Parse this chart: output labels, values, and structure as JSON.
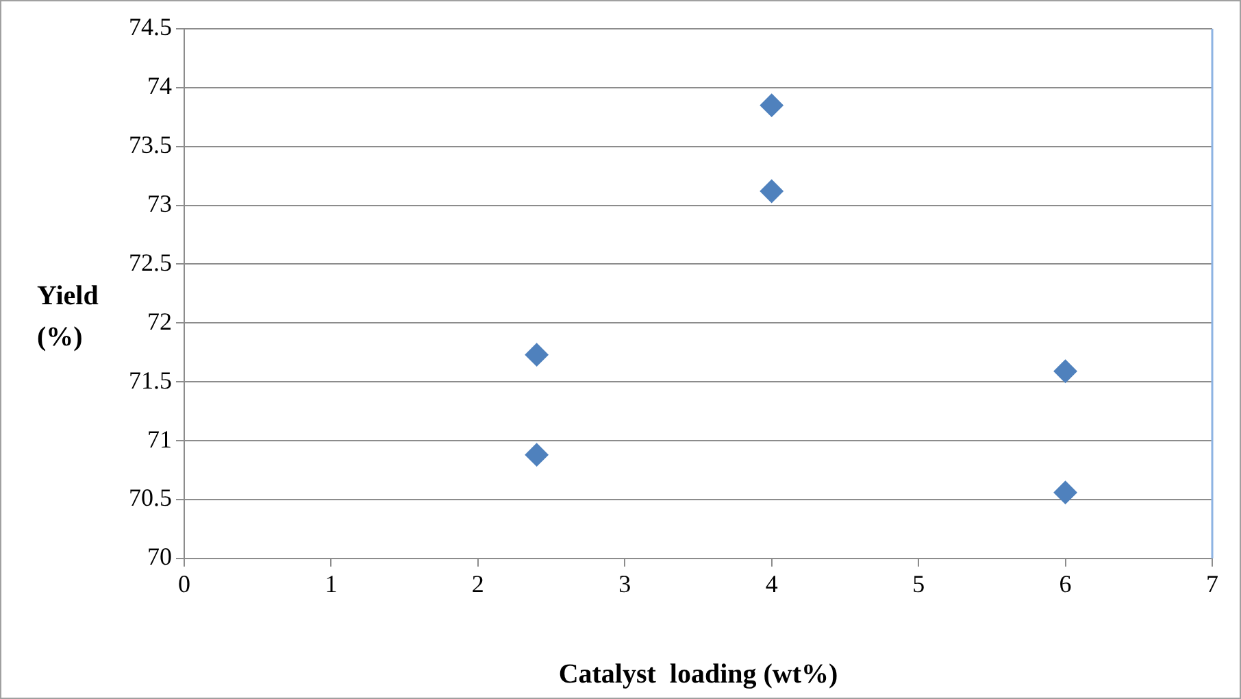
{
  "chart_data": {
    "type": "scatter",
    "xlabel": "Catalyst  loading (wt%)",
    "ylabel": "Yield (%)",
    "series": [
      {
        "color": "#4f81bd",
        "x": [
          2.4,
          2.4,
          4,
          4,
          6,
          6
        ],
        "values": [
          71.73,
          70.88,
          73.85,
          73.12,
          71.59,
          70.56
        ]
      }
    ],
    "xlim": [
      0,
      7
    ],
    "xticks": [
      0,
      1,
      2,
      3,
      4,
      5,
      6,
      7
    ],
    "ylim": [
      70,
      74.5
    ],
    "yticks": [
      70,
      70.5,
      71,
      71.5,
      72,
      72.5,
      73,
      73.5,
      74,
      74.5
    ],
    "grid": "y",
    "legend": false,
    "marker": "diamond"
  }
}
